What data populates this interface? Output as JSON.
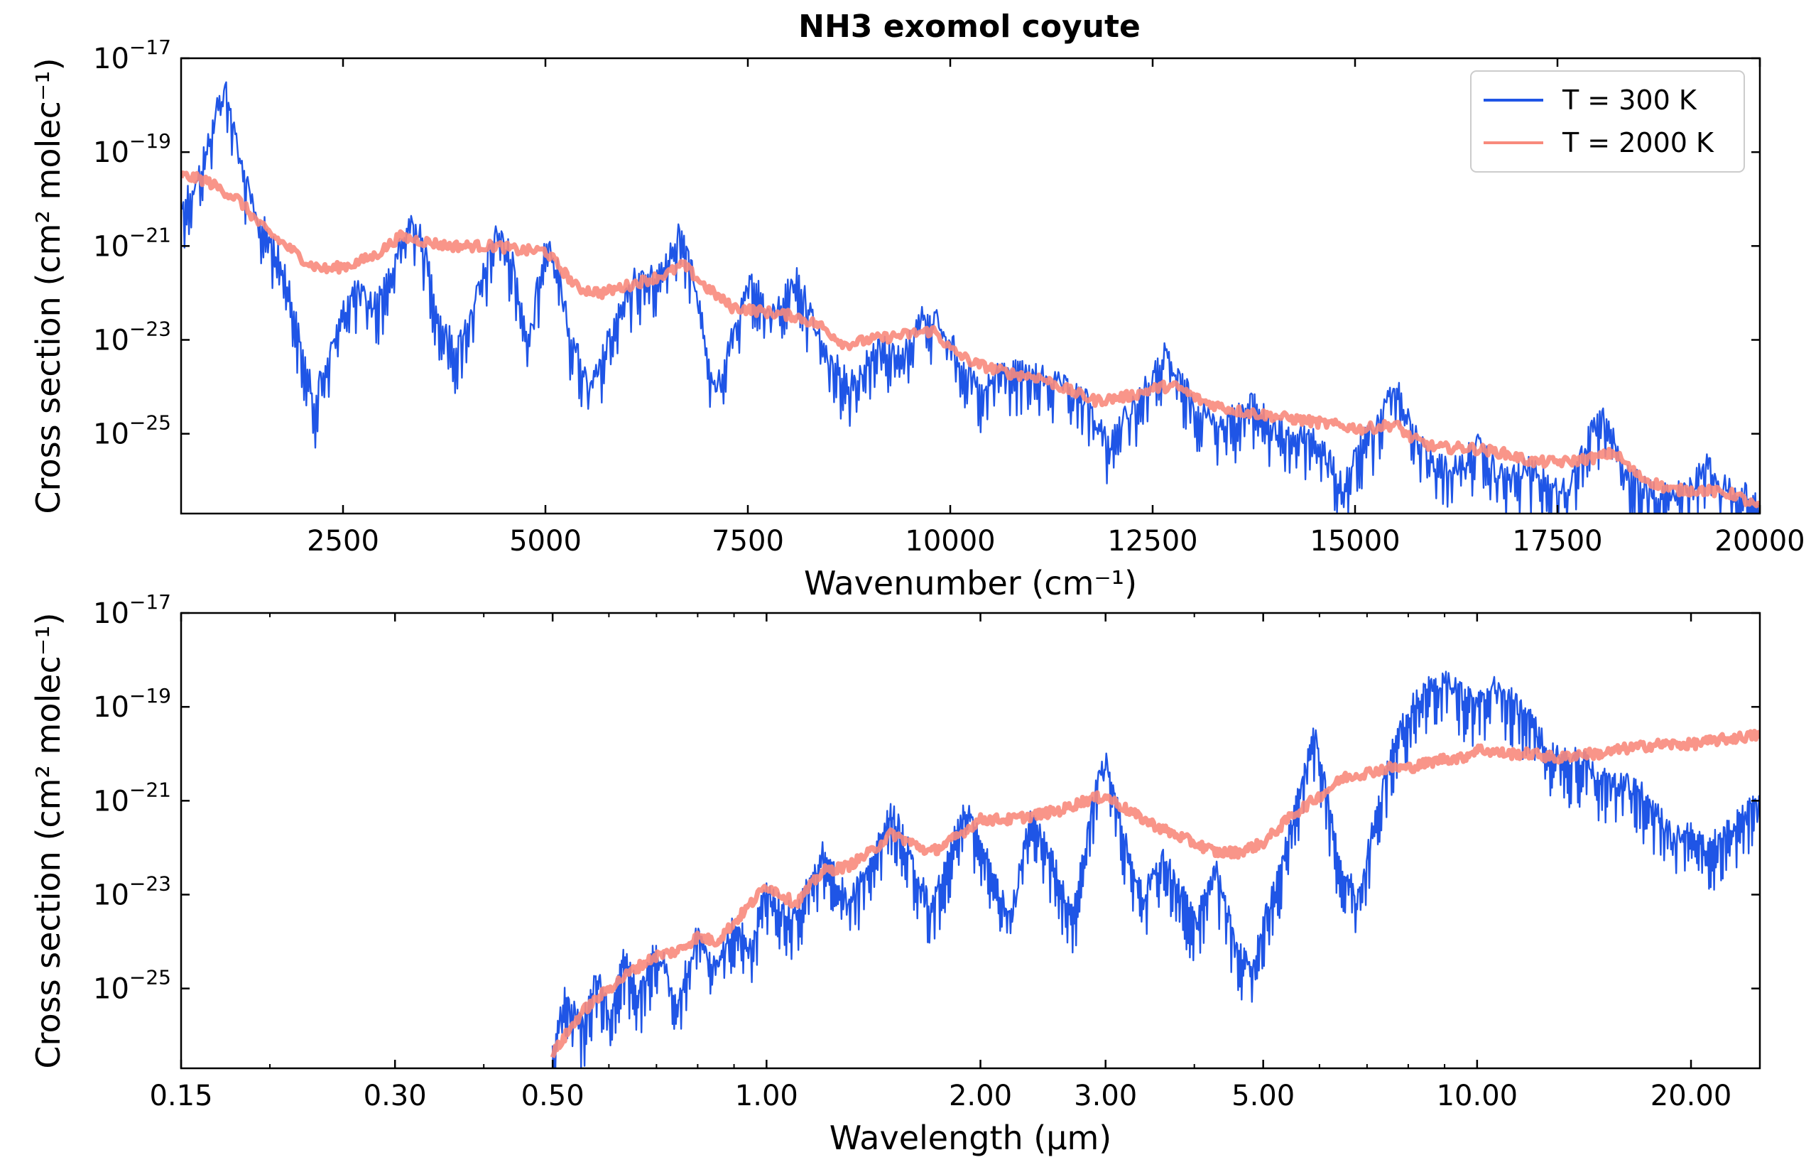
{
  "title": "NH3 exomol coyute",
  "legend": {
    "entries": [
      {
        "label": "T = 300 K",
        "color": "#1f55e6"
      },
      {
        "label": "T = 2000 K",
        "color": "#f88a7c"
      }
    ]
  },
  "chart_data": [
    {
      "type": "line",
      "title": "NH3 exomol coyute",
      "xlabel": "Wavenumber (cm⁻¹)",
      "ylabel": "Cross section (cm² molec⁻¹)",
      "xscale": "linear",
      "yscale": "log",
      "xlim": [
        500,
        20000
      ],
      "ylim": [
        -26.7,
        -17
      ],
      "x_ticks": [
        2500,
        5000,
        7500,
        10000,
        12500,
        15000,
        17500,
        20000
      ],
      "x_tick_labels": [
        "2500",
        "5000",
        "7500",
        "10000",
        "12500",
        "15000",
        "17500",
        "20000"
      ],
      "y_ticks": [
        -17,
        -19,
        -21,
        -23,
        -25
      ],
      "y_tick_labels": [
        "10",
        "10",
        "10",
        "10",
        "10"
      ],
      "y_tick_exponents": [
        "−17",
        "−19",
        "−21",
        "−23",
        "−25"
      ],
      "legend_position": "top-right",
      "grid": false,
      "series": [
        {
          "name": "T = 300 K",
          "color": "#1f55e6",
          "y_unit": "log10 cross section",
          "x": [
            500,
            700,
            950,
            1050,
            1200,
            1400,
            1600,
            1800,
            2000,
            2150,
            2300,
            2600,
            2900,
            3150,
            3350,
            3500,
            3700,
            3900,
            4200,
            4400,
            4600,
            4800,
            5000,
            5150,
            5300,
            5550,
            5800,
            6100,
            6400,
            6650,
            6850,
            7100,
            7300,
            7550,
            7800,
            7900,
            8100,
            8250,
            8500,
            8800,
            9100,
            9400,
            9650,
            9850,
            10100,
            10400,
            10600,
            10900,
            11200,
            11400,
            11700,
            11950,
            12200,
            12500,
            12650,
            12850,
            13100,
            13300,
            13550,
            13750,
            14000,
            14250,
            14500,
            14850,
            15050,
            15300,
            15500,
            15700,
            16000,
            16300,
            16500,
            16750,
            16900,
            17200,
            17500,
            17700,
            17900,
            18100,
            18300,
            18600,
            18900,
            19150,
            19350,
            19500,
            19700,
            20000
          ],
          "y": [
            -20.3,
            -19.8,
            -18.2,
            -17.7,
            -19.1,
            -20.5,
            -21.0,
            -21.8,
            -23.5,
            -24.5,
            -23.6,
            -22.1,
            -22.4,
            -21.5,
            -20.5,
            -21.2,
            -22.8,
            -23.4,
            -22.0,
            -20.8,
            -21.5,
            -23.3,
            -20.9,
            -21.7,
            -23.0,
            -24.3,
            -23.1,
            -21.9,
            -21.8,
            -20.8,
            -22.0,
            -24.3,
            -23.2,
            -21.9,
            -22.7,
            -22.4,
            -21.8,
            -22.5,
            -23.6,
            -24.1,
            -23.2,
            -23.6,
            -22.6,
            -22.8,
            -23.5,
            -24.4,
            -23.8,
            -23.9,
            -24.0,
            -24.2,
            -24.5,
            -25.4,
            -24.7,
            -24.0,
            -23.5,
            -24.1,
            -24.7,
            -24.9,
            -24.8,
            -24.5,
            -25.1,
            -25.2,
            -25.2,
            -26.3,
            -25.5,
            -24.9,
            -24.0,
            -25.1,
            -25.8,
            -25.9,
            -25.4,
            -26.0,
            -26.1,
            -25.9,
            -26.4,
            -26.2,
            -25.2,
            -24.8,
            -26.0,
            -26.3,
            -26.5,
            -26.3,
            -25.8,
            -26.3,
            -26.4,
            -26.6
          ]
        },
        {
          "name": "T = 2000 K",
          "color": "#f88a7c",
          "y_unit": "log10 cross section",
          "x": [
            500,
            800,
            1200,
            1500,
            1800,
            2100,
            2300,
            2600,
            2900,
            3200,
            3500,
            3800,
            4100,
            4400,
            4700,
            5000,
            5200,
            5400,
            5700,
            6100,
            6500,
            6700,
            7000,
            7300,
            7700,
            8100,
            8400,
            8700,
            9000,
            9400,
            9800,
            10000,
            10300,
            10700,
            11100,
            11500,
            11800,
            12200,
            12600,
            12800,
            13100,
            13500,
            13900,
            14300,
            14700,
            15100,
            15500,
            15700,
            16000,
            16400,
            16800,
            17200,
            17600,
            18000,
            18200,
            18500,
            18900,
            19300,
            19700,
            20000
          ],
          "y": [
            -19.5,
            -19.6,
            -20.0,
            -20.6,
            -21.0,
            -21.4,
            -21.5,
            -21.4,
            -21.2,
            -20.8,
            -20.9,
            -21.0,
            -21.0,
            -21.0,
            -21.1,
            -21.1,
            -21.5,
            -21.9,
            -22.0,
            -21.8,
            -21.6,
            -21.4,
            -21.9,
            -22.3,
            -22.4,
            -22.5,
            -22.7,
            -23.1,
            -23.0,
            -22.9,
            -22.8,
            -23.2,
            -23.5,
            -23.7,
            -23.8,
            -24.1,
            -24.3,
            -24.2,
            -24.0,
            -24.0,
            -24.3,
            -24.5,
            -24.6,
            -24.7,
            -24.8,
            -24.9,
            -24.8,
            -25.1,
            -25.3,
            -25.3,
            -25.4,
            -25.6,
            -25.6,
            -25.5,
            -25.4,
            -25.9,
            -26.2,
            -26.2,
            -26.3,
            -26.6
          ]
        }
      ]
    },
    {
      "type": "line",
      "title": "",
      "xlabel": "Wavelength (µm)",
      "ylabel": "Cross section (cm² molec⁻¹)",
      "xscale": "log",
      "yscale": "log",
      "xlim": [
        0.15,
        25
      ],
      "ylim": [
        -26.7,
        -17
      ],
      "x_ticks": [
        0.15,
        0.3,
        0.5,
        1.0,
        2.0,
        3.0,
        5.0,
        10.0,
        20.0
      ],
      "x_tick_labels": [
        "0.15",
        "0.30",
        "0.50",
        "1.00",
        "2.00",
        "3.00",
        "5.00",
        "10.00",
        "20.00"
      ],
      "y_ticks": [
        -17,
        -19,
        -21,
        -23,
        -25
      ],
      "y_tick_labels": [
        "10",
        "10",
        "10",
        "10",
        "10"
      ],
      "y_tick_exponents": [
        "−17",
        "−19",
        "−21",
        "−23",
        "−25"
      ],
      "grid": false,
      "series": [
        {
          "name": "T = 300 K",
          "color": "#1f55e6",
          "y_unit": "log10 cross section",
          "x": [
            0.5,
            0.52,
            0.55,
            0.58,
            0.6,
            0.63,
            0.66,
            0.7,
            0.75,
            0.8,
            0.85,
            0.9,
            0.95,
            1.0,
            1.05,
            1.1,
            1.2,
            1.3,
            1.4,
            1.5,
            1.6,
            1.7,
            1.8,
            1.9,
            2.0,
            2.2,
            2.35,
            2.5,
            2.7,
            2.9,
            3.0,
            3.2,
            3.4,
            3.6,
            3.8,
            4.0,
            4.3,
            4.6,
            4.8,
            5.0,
            5.3,
            5.6,
            5.9,
            6.1,
            6.4,
            6.8,
            7.2,
            7.6,
            8.0,
            8.5,
            9.0,
            9.5,
            10.0,
            10.5,
            11.0,
            11.5,
            12.0,
            13.0,
            14.0,
            15.0,
            16.0,
            17.0,
            18.0,
            19.0,
            20.0,
            21.0,
            22.0,
            23.0,
            24.0,
            25.0
          ],
          "y": [
            -26.5,
            -25.4,
            -26.0,
            -24.8,
            -25.8,
            -24.5,
            -25.3,
            -24.3,
            -25.4,
            -24.0,
            -24.8,
            -23.8,
            -24.3,
            -23.0,
            -23.5,
            -23.6,
            -22.3,
            -23.3,
            -22.6,
            -21.4,
            -22.4,
            -23.5,
            -22.4,
            -21.3,
            -22.0,
            -23.8,
            -21.6,
            -22.3,
            -23.6,
            -21.0,
            -20.3,
            -22.1,
            -23.2,
            -22.4,
            -23.0,
            -23.8,
            -22.7,
            -24.3,
            -24.8,
            -23.8,
            -22.6,
            -21.1,
            -19.8,
            -20.8,
            -22.5,
            -23.3,
            -21.5,
            -20.1,
            -19.3,
            -18.8,
            -18.6,
            -18.9,
            -19.1,
            -18.7,
            -18.9,
            -19.2,
            -19.6,
            -20.3,
            -20.3,
            -20.7,
            -20.8,
            -21.0,
            -21.5,
            -22.0,
            -21.7,
            -22.3,
            -21.9,
            -21.7,
            -21.4,
            -21.3
          ]
        },
        {
          "name": "T = 2000 K",
          "color": "#f88a7c",
          "y_unit": "log10 cross section",
          "x": [
            0.5,
            0.55,
            0.6,
            0.65,
            0.7,
            0.75,
            0.8,
            0.85,
            0.9,
            0.95,
            1.0,
            1.1,
            1.2,
            1.3,
            1.4,
            1.5,
            1.6,
            1.7,
            1.8,
            2.0,
            2.2,
            2.4,
            2.6,
            2.8,
            3.0,
            3.3,
            3.6,
            4.0,
            4.3,
            4.6,
            5.0,
            5.5,
            6.0,
            6.5,
            7.0,
            7.5,
            8.0,
            8.5,
            9.0,
            9.5,
            10.0,
            11.0,
            12.0,
            13.0,
            14.0,
            15.0,
            16.0,
            18.0,
            20.0,
            22.0,
            25.0
          ],
          "y": [
            -26.4,
            -25.5,
            -25.0,
            -24.6,
            -24.3,
            -24.2,
            -23.9,
            -24.0,
            -23.6,
            -23.2,
            -22.8,
            -23.2,
            -22.5,
            -22.4,
            -22.1,
            -21.7,
            -21.9,
            -22.1,
            -21.9,
            -21.4,
            -21.4,
            -21.3,
            -21.2,
            -21.0,
            -20.9,
            -21.3,
            -21.6,
            -21.9,
            -22.1,
            -22.1,
            -21.9,
            -21.3,
            -20.9,
            -20.5,
            -20.4,
            -20.3,
            -20.3,
            -20.2,
            -20.1,
            -20.1,
            -19.9,
            -20.0,
            -20.0,
            -20.1,
            -20.0,
            -20.0,
            -19.9,
            -19.8,
            -19.8,
            -19.7,
            -19.6
          ]
        }
      ]
    }
  ]
}
